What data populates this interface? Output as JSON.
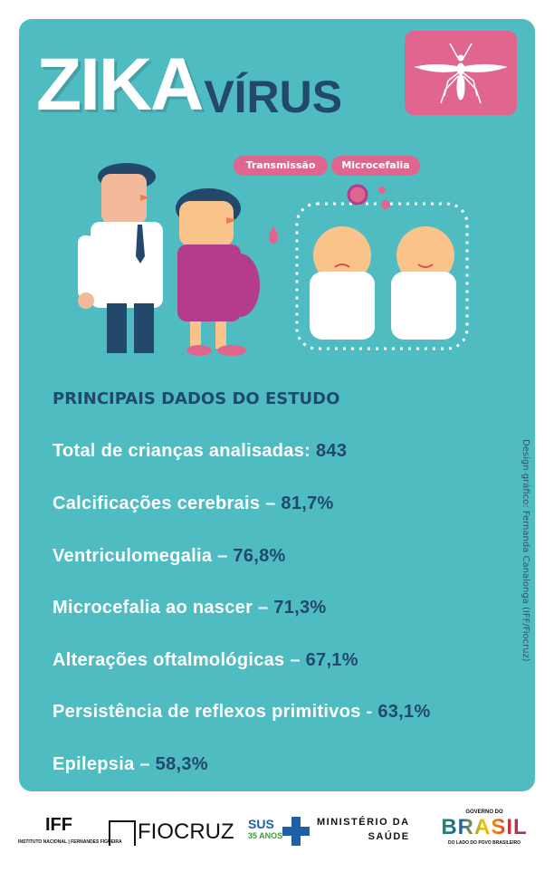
{
  "header": {
    "title_main": "ZIKA",
    "title_sub": "VÍRUS"
  },
  "tags": [
    "Transmissão",
    "Microcefalia"
  ],
  "section_heading": "PRINCIPAIS DADOS DO ESTUDO",
  "stats": [
    {
      "label": "Total de crianças analisadas: ",
      "value": "843"
    },
    {
      "label": "Calcificações cerebrais – ",
      "value": "81,7%"
    },
    {
      "label": "Ventriculomegalia – ",
      "value": "76,8%"
    },
    {
      "label": "Microcefalia ao nascer – ",
      "value": "71,3%"
    },
    {
      "label": "Alterações oftalmológicas – ",
      "value": "67,1%"
    },
    {
      "label": "Persistência de reflexos primitivos - ",
      "value": "63,1%"
    },
    {
      "label": "Epilepsia – ",
      "value": "58,3%"
    }
  ],
  "credit": "Design gráfico: Fernanda Canalonga (IFF/Fiocruz)",
  "footer": {
    "iff": "IFF",
    "iff_sub": "INSTITUTO NACIONAL",
    "iff_sub2": "FERNANDES FIGUEIRA",
    "fiocruz": "FIOCRUZ",
    "sus": "SUS",
    "sus_years": "35 ANOS",
    "ministerio": "MINISTÉRIO DA",
    "saude": "SAÚDE",
    "gov_top": "GOVERNO DO",
    "gov_brasil": "BRASIL",
    "gov_bottom": "DO LADO DO POVO BRASILEIRO"
  },
  "colors": {
    "teal": "#4fbcc1",
    "navy": "#22486b",
    "pink": "#e0668f"
  }
}
